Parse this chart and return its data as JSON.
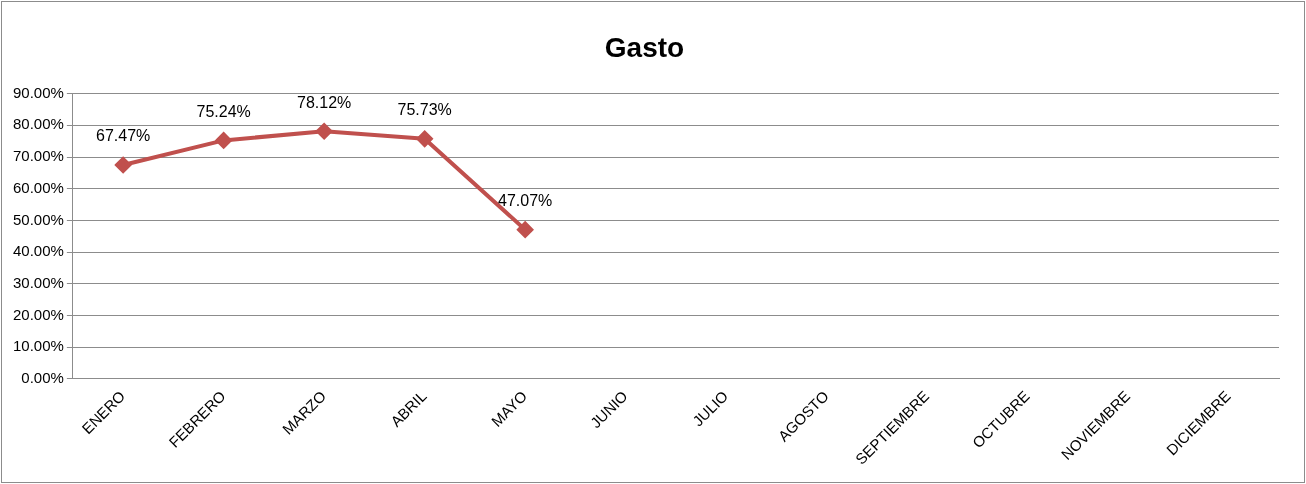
{
  "chart_data": {
    "type": "line",
    "title": "Gasto",
    "categories": [
      "ENERO",
      "FEBRERO",
      "MARZO",
      "ABRIL",
      "MAYO",
      "JUNIO",
      "JULIO",
      "AGOSTO",
      "SEPTIEMBRE",
      "OCTUBRE",
      "NOVIEMBRE",
      "DICIEMBRE"
    ],
    "series": [
      {
        "color": "#c0504d",
        "values": [
          67.47,
          75.24,
          78.12,
          75.73,
          47.07,
          null,
          null,
          null,
          null,
          null,
          null,
          null
        ],
        "value_labels": [
          "67.47%",
          "75.24%",
          "78.12%",
          "75.73%",
          "47.07%",
          null,
          null,
          null,
          null,
          null,
          null,
          null
        ]
      }
    ],
    "ylim": [
      0,
      90
    ],
    "yticks": [
      {
        "value": 0,
        "label": "0.00%"
      },
      {
        "value": 10,
        "label": "10.00%"
      },
      {
        "value": 20,
        "label": "20.00%"
      },
      {
        "value": 30,
        "label": "30.00%"
      },
      {
        "value": 40,
        "label": "40.00%"
      },
      {
        "value": 50,
        "label": "50.00%"
      },
      {
        "value": 60,
        "label": "60.00%"
      },
      {
        "value": 70,
        "label": "70.00%"
      },
      {
        "value": 80,
        "label": "80.00%"
      },
      {
        "value": 90,
        "label": "90.00%"
      }
    ],
    "grid": "y",
    "legend": false,
    "marker": "diamond",
    "line_style": "solid"
  }
}
